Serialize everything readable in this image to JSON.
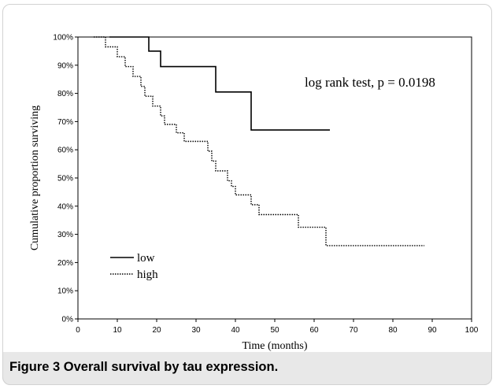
{
  "figure": {
    "caption_label": "Figure 3",
    "caption_text": "Overall survival by tau expression."
  },
  "chart_data": {
    "type": "line",
    "subtype": "kaplan-meier step",
    "xlabel": "Time (months)",
    "ylabel": "Cumulative proportion surviving",
    "xlim": [
      0,
      100
    ],
    "ylim": [
      0,
      100
    ],
    "x_ticks": [
      0,
      10,
      20,
      30,
      40,
      50,
      60,
      70,
      80,
      90,
      100
    ],
    "y_ticks": [
      "0%",
      "10%",
      "20%",
      "30%",
      "40%",
      "50%",
      "60%",
      "70%",
      "80%",
      "90%",
      "100%"
    ],
    "annotation": "log rank test,  p = 0.0198",
    "legend_position": "bottom-left",
    "series": [
      {
        "name": "low",
        "style": "solid",
        "points": [
          [
            8,
            100
          ],
          [
            18,
            100
          ],
          [
            18,
            95
          ],
          [
            21,
            95
          ],
          [
            21,
            89.5
          ],
          [
            35,
            89.5
          ],
          [
            35,
            80.5
          ],
          [
            44,
            80.5
          ],
          [
            44,
            67
          ],
          [
            64,
            67
          ]
        ]
      },
      {
        "name": "high",
        "style": "dotted",
        "points": [
          [
            4,
            100
          ],
          [
            7,
            100
          ],
          [
            7,
            96.5
          ],
          [
            10,
            96.5
          ],
          [
            10,
            93
          ],
          [
            12,
            93
          ],
          [
            12,
            89.5
          ],
          [
            14,
            89.5
          ],
          [
            14,
            86
          ],
          [
            16,
            86
          ],
          [
            16,
            82.5
          ],
          [
            17,
            82.5
          ],
          [
            17,
            79
          ],
          [
            19,
            79
          ],
          [
            19,
            75.5
          ],
          [
            21,
            75.5
          ],
          [
            21,
            72
          ],
          [
            22,
            72
          ],
          [
            22,
            69
          ],
          [
            25,
            69
          ],
          [
            25,
            66
          ],
          [
            27,
            66
          ],
          [
            27,
            63
          ],
          [
            33,
            63
          ],
          [
            33,
            59.5
          ],
          [
            34,
            59.5
          ],
          [
            34,
            56
          ],
          [
            35,
            56
          ],
          [
            35,
            52.5
          ],
          [
            38,
            52.5
          ],
          [
            38,
            49
          ],
          [
            39,
            49
          ],
          [
            39,
            47
          ],
          [
            40,
            47
          ],
          [
            40,
            44
          ],
          [
            44,
            44
          ],
          [
            44,
            40.5
          ],
          [
            46,
            40.5
          ],
          [
            46,
            37
          ],
          [
            56,
            37
          ],
          [
            56,
            32.5
          ],
          [
            63,
            32.5
          ],
          [
            63,
            26
          ],
          [
            88,
            26
          ]
        ]
      }
    ]
  }
}
